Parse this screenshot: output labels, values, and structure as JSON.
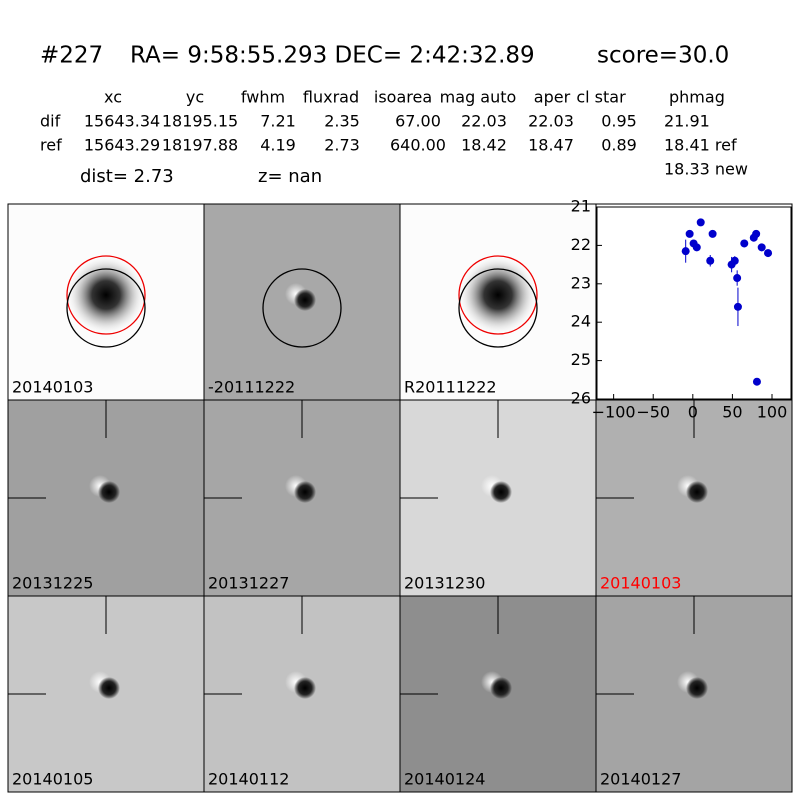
{
  "header": {
    "id": "#227",
    "coords": "RA= 9:58:55.293 DEC= 2:42:32.89",
    "score": "score=30.0"
  },
  "table": {
    "columns": [
      "xc",
      "yc",
      "fwhm",
      "fluxrad",
      "isoarea",
      "mag auto",
      "aper",
      "cl star",
      "phmag"
    ],
    "rows": [
      [
        "dif",
        "15643.34",
        "18195.15",
        "7.21",
        "2.35",
        "67.00",
        "22.03",
        "22.03",
        "0.95",
        "21.91"
      ],
      [
        "ref",
        "15643.29",
        "18197.88",
        "4.19",
        "2.73",
        "640.00",
        "18.42",
        "18.47",
        "0.89",
        "18.41 ref"
      ]
    ],
    "extra": "18.33 new",
    "dist": "dist=  2.73",
    "z": "z=   nan"
  },
  "stamps": [
    {
      "label": "20140103",
      "color": "#000000"
    },
    {
      "label": "-20111222",
      "color": "#000000"
    },
    {
      "label": "R20111222",
      "color": "#000000"
    },
    {
      "label": "20131225",
      "color": "#000000"
    },
    {
      "label": "20131227",
      "color": "#000000"
    },
    {
      "label": "20131230",
      "color": "#000000"
    },
    {
      "label": "20140103",
      "color": "#ff0000"
    },
    {
      "label": "20140105",
      "color": "#000000"
    },
    {
      "label": "20140112",
      "color": "#000000"
    },
    {
      "label": "20140124",
      "color": "#000000"
    },
    {
      "label": "20140127",
      "color": "#000000"
    }
  ],
  "chart_data": {
    "type": "scatter",
    "xlim": [
      -121,
      124
    ],
    "ylim": [
      21,
      26
    ],
    "xticks": [
      {
        "value": -100,
        "label": "−100"
      },
      {
        "value": -50,
        "label": "−50"
      },
      0,
      50,
      100
    ],
    "yticks": [
      21,
      22,
      23,
      24,
      25,
      26
    ],
    "series": [
      {
        "color": "#0000cc",
        "x": [
          -9,
          -4,
          1,
          5,
          10,
          22,
          25,
          49,
          53,
          56,
          57,
          65,
          77,
          80,
          81,
          87,
          95
        ],
        "values": [
          22.15,
          21.7,
          21.95,
          22.05,
          21.4,
          22.4,
          21.7,
          22.5,
          22.4,
          22.85,
          23.6,
          21.95,
          21.8,
          21.7,
          25.55,
          22.05,
          22.2
        ],
        "errors": [
          0.3,
          0.08,
          0.08,
          0.08,
          0.05,
          0.15,
          0.08,
          0.2,
          0.12,
          0.2,
          0.5,
          0.08,
          0.08,
          0.08,
          0.08,
          0.1,
          0.1
        ]
      }
    ]
  }
}
